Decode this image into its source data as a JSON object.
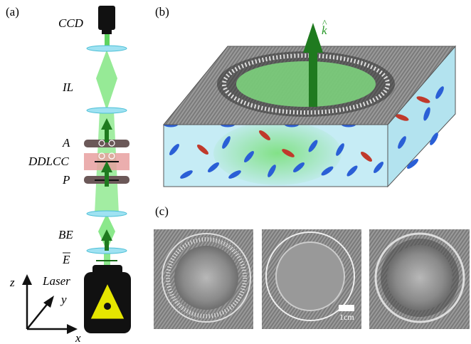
{
  "panels": {
    "a": {
      "label": "(a)",
      "components": [
        "CCD",
        "IL",
        "A",
        "DDLCC",
        "P",
        "BE",
        "E",
        "Laser"
      ],
      "axes": [
        "z",
        "y",
        "x"
      ]
    },
    "b": {
      "label": "(b)",
      "vector": "k"
    },
    "c": {
      "label": "(c)",
      "scale_bar": "1cm"
    }
  }
}
